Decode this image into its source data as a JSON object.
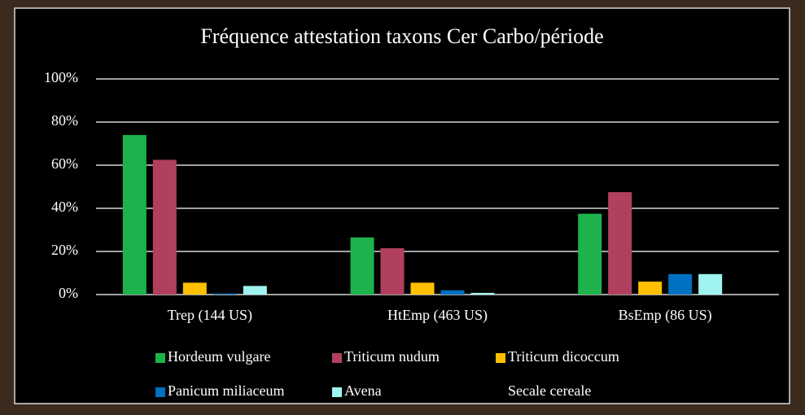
{
  "chart_data": {
    "type": "bar",
    "title": "Fréquence attestation taxons Cer Carbo/période",
    "categories": [
      "Trep (144 US)",
      "HtEmp (463 US)",
      "BsEmp (86 US)"
    ],
    "series": [
      {
        "name": "Hordeum vulgare",
        "color": "#1db24b",
        "values": [
          74,
          26.5,
          37.5
        ]
      },
      {
        "name": "Triticum nudum",
        "color": "#b1405f",
        "values": [
          62.5,
          21.5,
          47.5
        ]
      },
      {
        "name": "Triticum dicoccum",
        "color": "#ffc000",
        "values": [
          5.5,
          5.5,
          6
        ]
      },
      {
        "name": "Panicum miliaceum",
        "color": "#0070c0",
        "values": [
          0.5,
          2,
          9.5
        ]
      },
      {
        "name": "Avena",
        "color": "#a0f4ef",
        "values": [
          4,
          0.8,
          9.5
        ]
      },
      {
        "name": "Secale cereale",
        "color": "#000000",
        "values": [
          0,
          0,
          0
        ]
      }
    ],
    "ylim": [
      0,
      100
    ],
    "yticks": [
      {
        "value": 0,
        "label": "0%"
      },
      {
        "value": 20,
        "label": "20%"
      },
      {
        "value": 40,
        "label": "40%"
      },
      {
        "value": 60,
        "label": "60%"
      },
      {
        "value": 80,
        "label": "80%"
      },
      {
        "value": 100,
        "label": "100%"
      }
    ],
    "grid": true,
    "legend": "bottom"
  }
}
